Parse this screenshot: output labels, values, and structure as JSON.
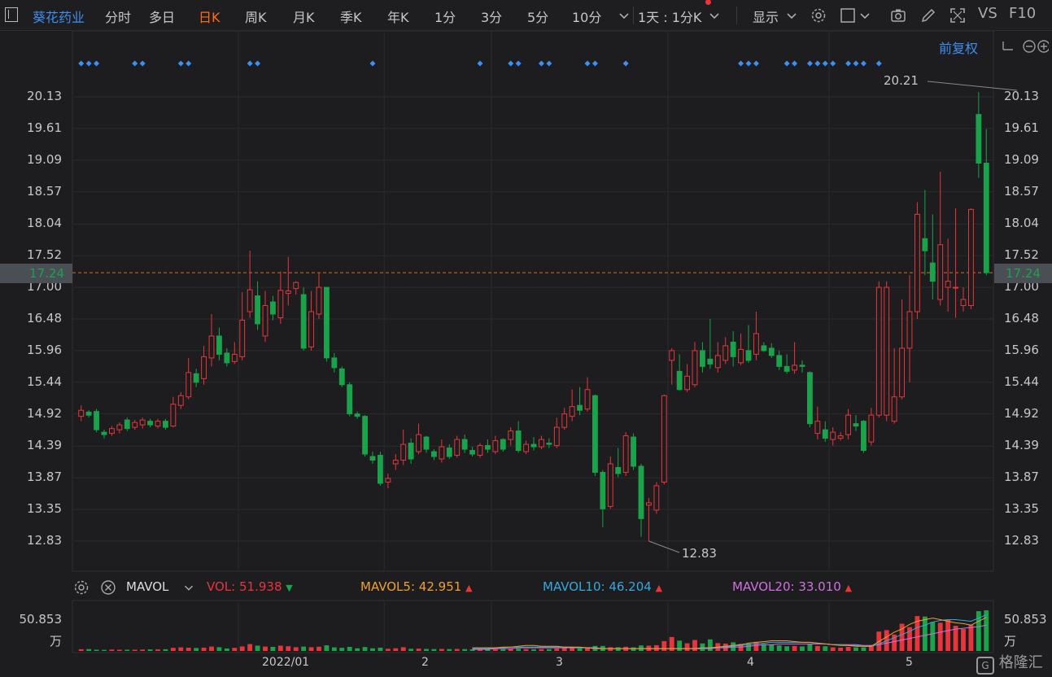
{
  "toolbar": {
    "stock_name": "葵花药业",
    "periods": [
      "分时",
      "多日",
      "日K",
      "周K",
      "月K",
      "季K",
      "年K",
      "1分",
      "3分",
      "5分",
      "10分"
    ],
    "active_period": "日K",
    "multi_period": "1天 : 1分K",
    "display": "显示",
    "vs": "VS",
    "f10": "F10"
  },
  "chart": {
    "adjust_mode": "前复权",
    "price_ticks": [
      "20.13",
      "19.61",
      "19.09",
      "18.57",
      "18.04",
      "17.52",
      "17.00",
      "16.48",
      "15.96",
      "15.44",
      "14.92",
      "14.39",
      "13.87",
      "13.35",
      "12.83"
    ],
    "current_price": "17.24",
    "high_label": "20.21",
    "low_label": "12.83",
    "x_ticks": [
      "2022/01",
      "2",
      "3",
      "4",
      "5"
    ]
  },
  "volume": {
    "indicator": "MAVOL",
    "vol_label": "VOL:",
    "vol_value": "51.938",
    "mavol5_label": "MAVOL5:",
    "mavol5_value": "42.951",
    "mavol10_label": "MAVOL10:",
    "mavol10_value": "46.204",
    "mavol20_label": "MAVOL20:",
    "mavol20_value": "33.010",
    "axis_value": "50.853",
    "axis_unit": "万"
  },
  "colors": {
    "up": "#e8353b",
    "down": "#1aa34a",
    "accent": "#3d8ff0",
    "active": "#ff6a1a"
  },
  "logo_text": "格隆汇",
  "chart_data": {
    "type": "candlestick",
    "ylim": [
      12.6,
      20.4
    ],
    "candles": [
      [
        14.88,
        14.98,
        14.8,
        15.06
      ],
      [
        14.95,
        14.9,
        14.86,
        14.98
      ],
      [
        14.96,
        14.66,
        14.62,
        15.0
      ],
      [
        14.62,
        14.58,
        14.52,
        14.66
      ],
      [
        14.6,
        14.68,
        14.56,
        14.72
      ],
      [
        14.66,
        14.74,
        14.6,
        14.78
      ],
      [
        14.82,
        14.68,
        14.64,
        14.86
      ],
      [
        14.7,
        14.78,
        14.66,
        14.82
      ],
      [
        14.74,
        14.82,
        14.68,
        14.86
      ],
      [
        14.8,
        14.74,
        14.7,
        14.84
      ],
      [
        14.72,
        14.8,
        14.68,
        14.84
      ],
      [
        14.8,
        14.7,
        14.66,
        14.84
      ],
      [
        14.72,
        15.08,
        14.7,
        15.2
      ],
      [
        15.06,
        15.22,
        15.0,
        15.28
      ],
      [
        15.2,
        15.6,
        15.16,
        15.84
      ],
      [
        15.58,
        15.44,
        15.36,
        15.66
      ],
      [
        15.5,
        15.86,
        15.4,
        16.04
      ],
      [
        15.84,
        16.2,
        15.7,
        16.56
      ],
      [
        16.2,
        15.9,
        15.8,
        16.34
      ],
      [
        15.92,
        15.76,
        15.7,
        16.0
      ],
      [
        15.78,
        15.9,
        15.74,
        16.1
      ],
      [
        15.86,
        16.46,
        15.8,
        16.92
      ],
      [
        16.6,
        16.96,
        16.5,
        17.6
      ],
      [
        16.86,
        16.4,
        16.3,
        17.1
      ],
      [
        16.2,
        16.7,
        16.1,
        16.94
      ],
      [
        16.76,
        16.56,
        16.46,
        16.86
      ],
      [
        16.5,
        16.95,
        16.4,
        17.26
      ],
      [
        16.9,
        16.94,
        16.7,
        17.5
      ],
      [
        16.98,
        17.08,
        16.88,
        17.1
      ],
      [
        16.88,
        16.0,
        15.96,
        17.0
      ],
      [
        16.02,
        16.6,
        15.96,
        16.94
      ],
      [
        16.56,
        17.0,
        16.48,
        17.24
      ],
      [
        17.0,
        15.84,
        15.78,
        17.0
      ],
      [
        15.84,
        15.68,
        15.6,
        15.92
      ],
      [
        15.66,
        15.4,
        15.36,
        15.7
      ],
      [
        15.4,
        14.92,
        14.88,
        15.44
      ],
      [
        14.92,
        14.88,
        14.84,
        14.96
      ],
      [
        14.88,
        14.26,
        14.22,
        14.9
      ],
      [
        14.22,
        14.16,
        14.1,
        14.3
      ],
      [
        14.24,
        13.78,
        13.74,
        14.3
      ],
      [
        13.8,
        13.86,
        13.7,
        13.94
      ],
      [
        14.1,
        14.16,
        14.0,
        14.26
      ],
      [
        14.16,
        14.42,
        14.08,
        14.66
      ],
      [
        14.44,
        14.18,
        14.1,
        14.52
      ],
      [
        14.3,
        14.58,
        14.26,
        14.76
      ],
      [
        14.54,
        14.34,
        14.28,
        14.56
      ],
      [
        14.3,
        14.22,
        14.16,
        14.34
      ],
      [
        14.18,
        14.38,
        14.12,
        14.5
      ],
      [
        14.36,
        14.22,
        14.18,
        14.42
      ],
      [
        14.24,
        14.5,
        14.2,
        14.56
      ],
      [
        14.5,
        14.34,
        14.28,
        14.58
      ],
      [
        14.32,
        14.26,
        14.22,
        14.38
      ],
      [
        14.24,
        14.4,
        14.2,
        14.44
      ],
      [
        14.4,
        14.34,
        14.28,
        14.5
      ],
      [
        14.3,
        14.48,
        14.26,
        14.56
      ],
      [
        14.5,
        14.34,
        14.3,
        14.52
      ],
      [
        14.5,
        14.64,
        14.4,
        14.7
      ],
      [
        14.64,
        14.32,
        14.28,
        14.8
      ],
      [
        14.3,
        14.42,
        14.26,
        14.48
      ],
      [
        14.42,
        14.38,
        14.32,
        14.54
      ],
      [
        14.38,
        14.5,
        14.34,
        14.56
      ],
      [
        14.44,
        14.42,
        14.36,
        14.52
      ],
      [
        14.4,
        14.7,
        14.36,
        14.86
      ],
      [
        14.7,
        14.92,
        14.66,
        15.02
      ],
      [
        14.88,
        15.04,
        14.8,
        15.32
      ],
      [
        15.06,
        14.98,
        14.9,
        15.36
      ],
      [
        15.0,
        15.32,
        14.96,
        15.52
      ],
      [
        15.22,
        13.96,
        13.9,
        15.24
      ],
      [
        13.96,
        13.36,
        13.06,
        14.0
      ],
      [
        13.4,
        14.1,
        13.36,
        14.22
      ],
      [
        14.04,
        13.94,
        13.88,
        14.36
      ],
      [
        13.96,
        14.56,
        13.9,
        14.62
      ],
      [
        14.54,
        14.06,
        14.0,
        14.6
      ],
      [
        14.06,
        13.2,
        12.9,
        14.1
      ],
      [
        13.42,
        13.46,
        12.83,
        13.54
      ],
      [
        13.34,
        13.74,
        13.28,
        13.8
      ],
      [
        13.8,
        15.22,
        13.76,
        15.24
      ],
      [
        15.8,
        15.96,
        15.4,
        16.0
      ],
      [
        15.62,
        15.32,
        15.3,
        15.9
      ],
      [
        15.32,
        15.54,
        15.28,
        15.74
      ],
      [
        15.4,
        15.96,
        15.36,
        16.1
      ],
      [
        15.96,
        15.7,
        15.6,
        16.1
      ],
      [
        15.82,
        15.74,
        15.66,
        16.48
      ],
      [
        15.68,
        15.88,
        15.6,
        16.1
      ],
      [
        15.8,
        16.04,
        15.74,
        16.18
      ],
      [
        16.1,
        15.86,
        15.7,
        16.28
      ],
      [
        15.76,
        15.98,
        15.72,
        16.24
      ],
      [
        15.96,
        15.8,
        15.76,
        16.38
      ],
      [
        15.9,
        16.24,
        15.8,
        16.6
      ],
      [
        16.04,
        15.96,
        15.94,
        16.1
      ],
      [
        16.0,
        15.88,
        15.84,
        16.08
      ],
      [
        15.88,
        15.7,
        15.64,
        15.96
      ],
      [
        15.7,
        15.62,
        15.58,
        15.9
      ],
      [
        15.64,
        15.72,
        15.58,
        16.1
      ],
      [
        15.72,
        15.7,
        15.6,
        15.8
      ],
      [
        15.6,
        14.76,
        14.7,
        15.62
      ],
      [
        14.6,
        14.8,
        14.5,
        15.04
      ],
      [
        14.66,
        14.52,
        14.46,
        14.8
      ],
      [
        14.5,
        14.62,
        14.4,
        14.7
      ],
      [
        14.52,
        14.56,
        14.48,
        14.62
      ],
      [
        14.58,
        14.9,
        14.5,
        15.0
      ],
      [
        14.76,
        14.72,
        14.64,
        14.9
      ],
      [
        14.8,
        14.32,
        14.28,
        14.82
      ],
      [
        14.46,
        14.9,
        14.4,
        15.02
      ],
      [
        14.9,
        17.0,
        14.86,
        17.1
      ],
      [
        14.9,
        17.0,
        14.8,
        17.1
      ],
      [
        14.8,
        15.2,
        14.76,
        16.0
      ],
      [
        15.2,
        16.0,
        15.16,
        16.8
      ],
      [
        16.0,
        16.6,
        15.44,
        17.2
      ],
      [
        16.6,
        18.2,
        16.48,
        18.4
      ],
      [
        17.8,
        17.6,
        17.2,
        18.6
      ],
      [
        17.4,
        17.1,
        16.8,
        18.2
      ],
      [
        16.8,
        17.7,
        16.7,
        18.9
      ],
      [
        17.0,
        17.1,
        16.6,
        17.8
      ],
      [
        17.0,
        17.0,
        16.5,
        18.3
      ],
      [
        16.7,
        16.8,
        16.6,
        17.0
      ],
      [
        16.7,
        18.28,
        16.64,
        18.3
      ],
      [
        19.84,
        19.04,
        18.8,
        20.21
      ],
      [
        19.04,
        17.24,
        17.2,
        19.6
      ]
    ],
    "volume": [
      2.2,
      2.4,
      1.6,
      1.4,
      1.8,
      1.6,
      1.6,
      1.6,
      1.8,
      2.0,
      2.0,
      2.2,
      4.0,
      4.6,
      4.2,
      3.8,
      4.2,
      5.6,
      4.8,
      3.2,
      4.0,
      5.8,
      8.8,
      6.8,
      5.6,
      5.2,
      6.8,
      6.0,
      4.8,
      5.6,
      4.8,
      5.4,
      7.2,
      4.6,
      4.0,
      5.2,
      3.4,
      5.0,
      3.4,
      4.2,
      2.8,
      3.4,
      4.8,
      2.8,
      3.0,
      2.6,
      2.4,
      2.6,
      2.4,
      2.6,
      2.4,
      2.2,
      2.4,
      2.2,
      2.4,
      2.2,
      2.8,
      3.0,
      2.4,
      2.2,
      2.4,
      2.4,
      3.2,
      3.8,
      4.2,
      3.4,
      4.8,
      6.4,
      6.4,
      4.8,
      4.8,
      5.4,
      4.6,
      7.0,
      6.8,
      7.4,
      12.6,
      17.8,
      13.2,
      9.8,
      14.0,
      9.6,
      14.8,
      10.0,
      9.4,
      11.0,
      9.0,
      9.4,
      11.6,
      8.8,
      8.0,
      7.2,
      6.0,
      6.4,
      5.8,
      8.8,
      6.4,
      6.0,
      4.6,
      4.2,
      5.2,
      4.6,
      4.6,
      7.4,
      24.8,
      26.6,
      21.0,
      34.8,
      30.4,
      44.6,
      44.0,
      37.0,
      36.0,
      40.4,
      32.2,
      28.0,
      33.6,
      50.853,
      51.938
    ],
    "mavol5": [
      4,
      4,
      4,
      4,
      5,
      5,
      6,
      7,
      7,
      6,
      6,
      6,
      5,
      5,
      5,
      4,
      4,
      3,
      3,
      3,
      3,
      3,
      3,
      3,
      3,
      3,
      3,
      3,
      3,
      3,
      4,
      4,
      5,
      6,
      7,
      8,
      10,
      11,
      12,
      13,
      13,
      13,
      12,
      11,
      11,
      10,
      9,
      8,
      7,
      7,
      6,
      6,
      6,
      12,
      18,
      24,
      28,
      34,
      38,
      40,
      42,
      40,
      38,
      36,
      35,
      33,
      38,
      42.951
    ],
    "mavol10": [
      3,
      3,
      3,
      4,
      4,
      5,
      5,
      5,
      5,
      5,
      5,
      5,
      5,
      5,
      4,
      4,
      4,
      3,
      3,
      3,
      3,
      3,
      3,
      3,
      3,
      3,
      3,
      3,
      3,
      3,
      3,
      4,
      4,
      5,
      6,
      7,
      8,
      9,
      10,
      11,
      11,
      11,
      11,
      11,
      11,
      10,
      9,
      8,
      8,
      7,
      7,
      6,
      6,
      9,
      13,
      17,
      21,
      25,
      30,
      33,
      37,
      39,
      40,
      40,
      39,
      38,
      42,
      46.204
    ],
    "mavol20": [
      2,
      2,
      2,
      3,
      3,
      3,
      4,
      4,
      4,
      4,
      4,
      4,
      4,
      4,
      4,
      4,
      3,
      3,
      3,
      3,
      3,
      3,
      3,
      3,
      3,
      3,
      3,
      3,
      3,
      3,
      3,
      3,
      4,
      4,
      5,
      5,
      6,
      7,
      8,
      8,
      9,
      9,
      9,
      9,
      9,
      9,
      9,
      8,
      8,
      8,
      8,
      7,
      7,
      8,
      10,
      12,
      14,
      16,
      18,
      20,
      22,
      24,
      26,
      28,
      29,
      30,
      31,
      33.01
    ]
  }
}
